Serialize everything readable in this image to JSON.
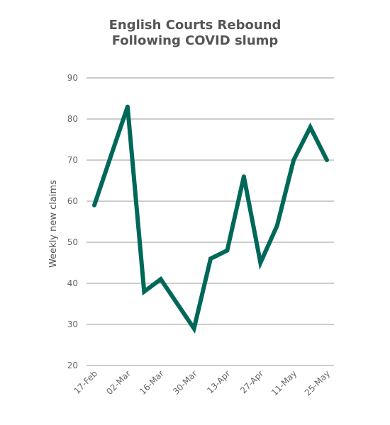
{
  "chart_data": {
    "type": "line",
    "title_lines": [
      "English Courts Rebound",
      "Following COVID slump"
    ],
    "xlabel": "",
    "ylabel": "Weekly new claims",
    "ylim": [
      20,
      90
    ],
    "yticks": [
      20,
      30,
      40,
      50,
      60,
      70,
      80,
      90
    ],
    "x_tick_labels": [
      "17-Feb",
      "02-Mar",
      "16-Mar",
      "30-Mar",
      "13-Apr",
      "27-Apr",
      "11-May",
      "25-May"
    ],
    "x": [
      "17-Feb",
      "24-Feb",
      "02-Mar",
      "09-Mar",
      "16-Mar",
      "23-Mar",
      "30-Mar",
      "06-Apr",
      "13-Apr",
      "20-Apr",
      "27-Apr",
      "04-May",
      "11-May",
      "18-May",
      "25-May"
    ],
    "series": [
      {
        "values": [
          59,
          71,
          83,
          38,
          41,
          35,
          29,
          46,
          48,
          66,
          45,
          54,
          70,
          78,
          70
        ],
        "color": "#006858"
      }
    ],
    "grid": true,
    "gridline_color": "#999999"
  }
}
